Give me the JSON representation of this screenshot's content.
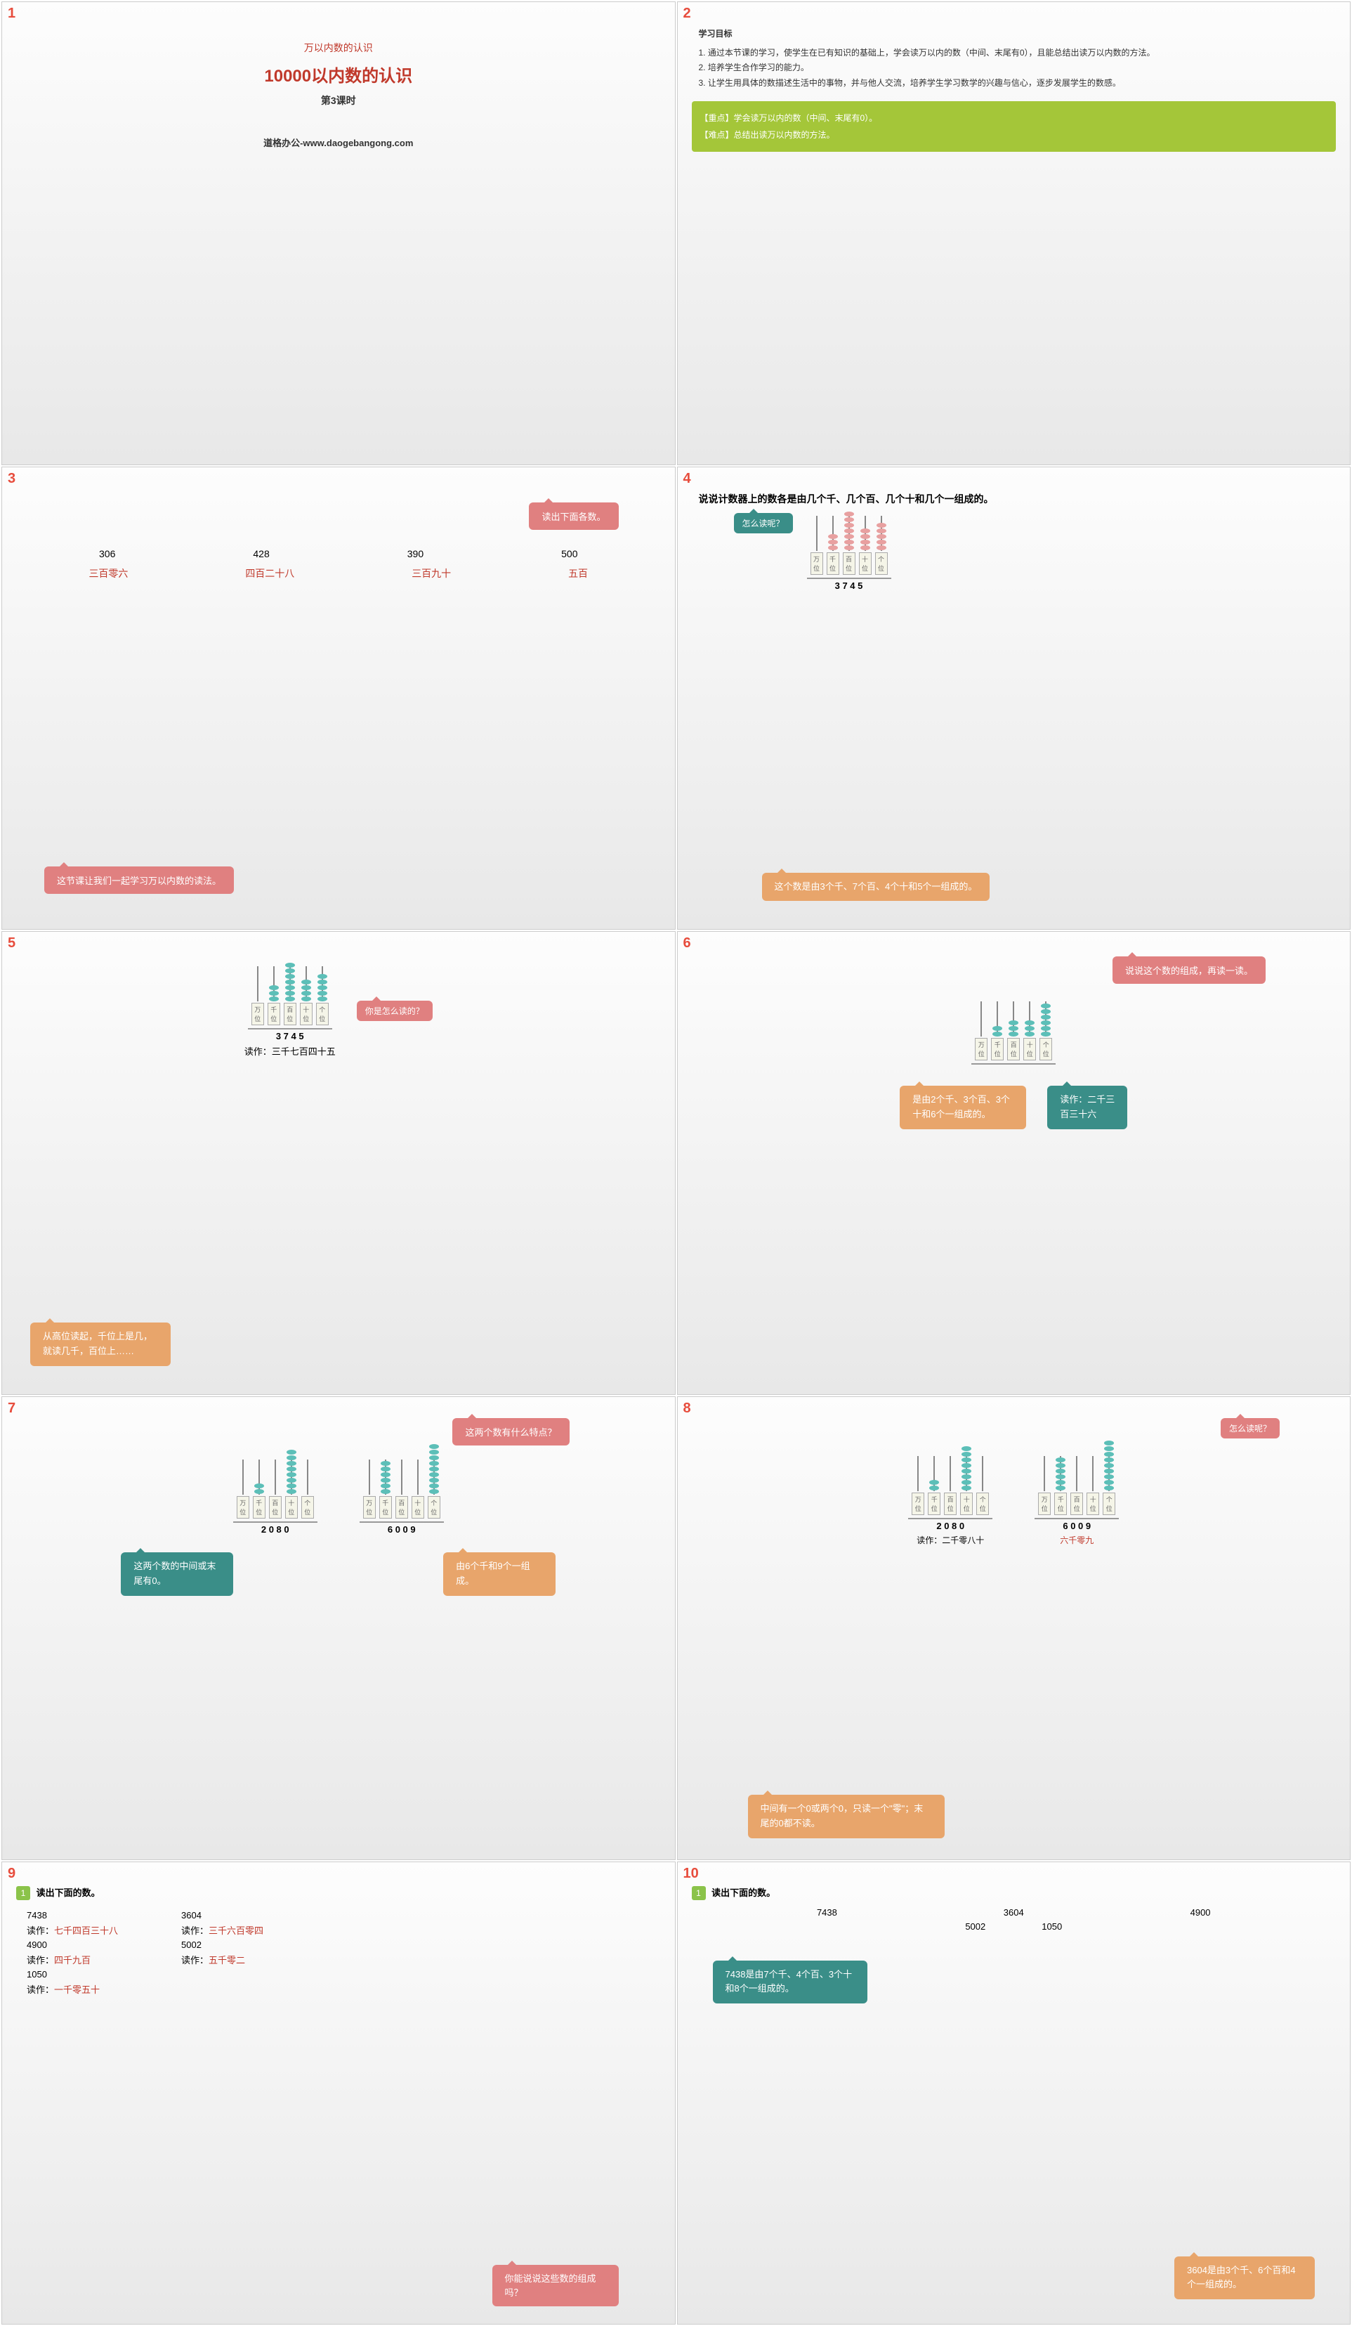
{
  "slides": {
    "s1": {
      "num": "1",
      "subtitle": "万以内数的认识",
      "title": "10000以内数的认识",
      "lesson": "第3课时",
      "footer": "道格办公-www.daogebangong.com"
    },
    "s2": {
      "num": "2",
      "heading": "学习目标",
      "obj1": "1. 通过本节课的学习，使学生在已有知识的基础上，学会读万以内的数（中间、末尾有0），且能总结出读万以内数的方法。",
      "obj2": "2. 培养学生合作学习的能力。",
      "obj3": "3. 让学生用具体的数描述生活中的事物，并与他人交流，培养学生学习数学的兴趣与信心，逐步发展学生的数感。",
      "key1": "【重点】学会读万以内的数（中间、末尾有0）。",
      "key2": "【难点】总结出读万以内数的方法。"
    },
    "s3": {
      "num": "3",
      "bubble1": "读出下面各数。",
      "n1": "306",
      "n2": "428",
      "n3": "390",
      "n4": "500",
      "r1": "三百零六",
      "r2": "四百二十八",
      "r3": "三百九十",
      "r4": "五百",
      "bubble2": "这节课让我们一起学习万以内数的读法。"
    },
    "s4": {
      "num": "4",
      "title": "说说计数器上的数各是由几个千、几个百、几个十和几个一组成的。",
      "bubble1": "怎么读呢？",
      "abacus_labels": [
        "万位",
        "千位",
        "百位",
        "十位",
        "个位"
      ],
      "abacus_beads": [
        0,
        3,
        7,
        4,
        5
      ],
      "abacus_digits": "3 7 4 5",
      "bubble2": "这个数是由3个千、7个百、4个十和5个一组成的。"
    },
    "s5": {
      "num": "5",
      "bubble1": "你是怎么读的？",
      "abacus_labels": [
        "万位",
        "千位",
        "百位",
        "十位",
        "个位"
      ],
      "abacus_beads": [
        0,
        3,
        7,
        4,
        5
      ],
      "abacus_digits": "3 7 4 5",
      "reading_label": "读作：",
      "reading": "三千七百四十五",
      "bubble2": "从高位读起，千位上是几，就读几千，百位上……"
    },
    "s6": {
      "num": "6",
      "bubble1": "说说这个数的组成，再读一读。",
      "abacus_labels": [
        "万位",
        "千位",
        "百位",
        "十位",
        "个位"
      ],
      "abacus_beads": [
        0,
        2,
        3,
        3,
        6
      ],
      "bubble2": "是由2个千、3个百、3个十和6个一组成的。",
      "bubble3_l1": "读作：二千三",
      "bubble3_l2": "百三十六"
    },
    "s7": {
      "num": "7",
      "bubble1": "这两个数有什么特点？",
      "abacus_labels": [
        "万位",
        "千位",
        "百位",
        "十位",
        "个位"
      ],
      "a1_beads": [
        0,
        2,
        0,
        8,
        0
      ],
      "a1_digits": "2 0 8 0",
      "a2_beads": [
        0,
        6,
        0,
        0,
        9
      ],
      "a2_digits": "6 0 0 9",
      "bubble2": "这两个数的中间或末尾有0。",
      "bubble3": "由6个千和9个一组成。"
    },
    "s8": {
      "num": "8",
      "bubble1": "怎么读呢？",
      "abacus_labels": [
        "万位",
        "千位",
        "百位",
        "十位",
        "个位"
      ],
      "a1_beads": [
        0,
        2,
        0,
        8,
        0
      ],
      "a1_digits": "2 0 8 0",
      "a1_reading_label": "读作：",
      "a1_reading": "二千零八十",
      "a2_beads": [
        0,
        6,
        0,
        0,
        9
      ],
      "a2_digits": "6 0 0 9",
      "a2_reading": "六千零九",
      "bubble2": "中间有一个0或两个0，只读一个\"零\"；末尾的0都不读。"
    },
    "s9": {
      "num": "9",
      "badge": "1",
      "title": "读出下面的数。",
      "items": [
        {
          "n": "7438",
          "r": "七千四百三十八"
        },
        {
          "n": "4900",
          "r": "四千九百"
        },
        {
          "n": "1050",
          "r": "一千零五十"
        },
        {
          "n": "3604",
          "r": "三千六百零四"
        },
        {
          "n": "5002",
          "r": "五千零二"
        }
      ],
      "read_label": "读作：",
      "bubble": "你能说说这些数的组成吗？"
    },
    "s10": {
      "num": "10",
      "badge": "1",
      "title": "读出下面的数。",
      "row1": [
        "7438",
        "3604",
        "4900"
      ],
      "row2": [
        "5002",
        "1050"
      ],
      "bubble1": "7438是由7个千、4个百、3个十和8个一组成的。",
      "bubble2": "3604是由3个千、6个百和4个一组成的。"
    }
  },
  "colors": {
    "red": "#c0392b",
    "pink": "#e08080",
    "orange": "#e8a56b",
    "teal": "#3a8e88",
    "green": "#a4c639"
  }
}
